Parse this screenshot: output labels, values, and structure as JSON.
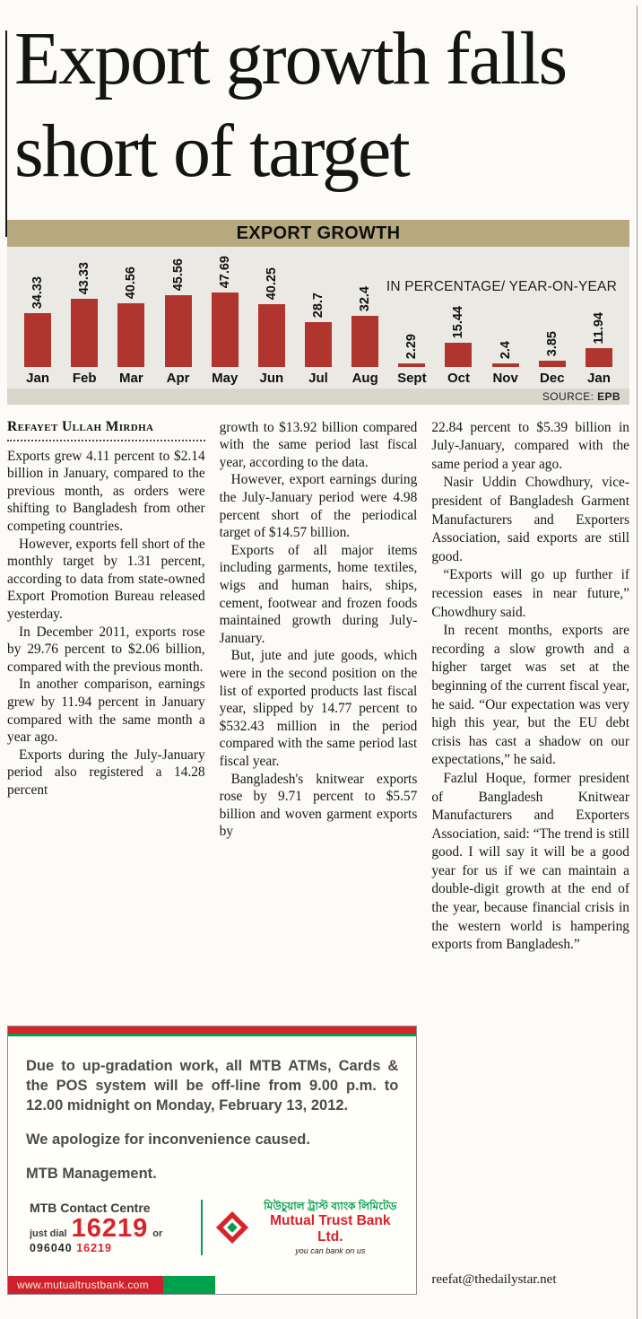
{
  "headline": "Export growth falls short of target",
  "chart": {
    "title": "EXPORT GROWTH",
    "subtitle": "IN PERCENTAGE/ YEAR-ON-YEAR",
    "source_label": "SOURCE:",
    "source_value": "EPB"
  },
  "chart_data": {
    "type": "bar",
    "title": "EXPORT GROWTH",
    "subtitle": "IN PERCENTAGE/ YEAR-ON-YEAR",
    "categories": [
      "Jan",
      "Feb",
      "Mar",
      "Apr",
      "May",
      "Jun",
      "Jul",
      "Aug",
      "Sept",
      "Oct",
      "Nov",
      "Dec",
      "Jan"
    ],
    "values": [
      34.33,
      43.33,
      40.56,
      45.56,
      47.69,
      40.25,
      28.7,
      32.4,
      2.29,
      15.44,
      2.4,
      3.85,
      11.94
    ],
    "unit": "percent year-on-year",
    "ylim": [
      0,
      50
    ],
    "bar_color": "#b0352e",
    "source": "EPB",
    "legend": false,
    "grid": false
  },
  "article": {
    "byline": "Refayet Ullah Mirdha",
    "email": "reefat@thedailystar.net",
    "columns": [
      [
        "Exports grew 4.11 percent to $2.14 billion in January, compared to the previous month, as orders were shifting to Bangladesh from other competing countries.",
        "However, exports fell short of the monthly target by 1.31 percent, according to data from state-owned Export Promotion Bureau released yesterday.",
        "In December 2011, exports rose by 29.76 percent to $2.06 billion, compared with the previous month.",
        "In another comparison, earnings grew by 11.94 percent in January compared with the same month a year ago.",
        "Exports during the July-January period also registered a 14.28 percent"
      ],
      [
        "growth to $13.92 billion compared with the same period last fiscal year, according to the data.",
        "However, export earnings during the July-January period were 4.98 percent short of the periodical target of $14.57 billion.",
        "Exports of all major items including garments, home textiles, wigs and human hairs, ships, cement, footwear and frozen foods maintained growth during July-January.",
        "But, jute and jute goods, which were in the second position on the list of exported products last fiscal year, slipped by 14.77 percent to $532.43 million in the period compared with the same period last fiscal year.",
        "Bangladesh's knitwear exports rose by 9.71 percent to $5.57 billion and woven garment exports by"
      ],
      [
        "22.84 percent to $5.39 billion in July-January, compared with the same period a year ago.",
        "Nasir Uddin Chowdhury, vice-president of Bangladesh Garment Manufacturers and Exporters Association, said exports are still good.",
        "“Exports will go up further if recession eases in near future,” Chowdhury said.",
        "In recent months, exports are recording a slow growth and a higher target was set at the beginning of the current fiscal year, he said. “Our expectation was very high this year, but the EU debt crisis has cast a shadow on our expectations,” he said.",
        "Fazlul Hoque, former president of Bangladesh Knitwear Manufacturers and Exporters Association, said: “The trend is still good. I will say it will be a good year for us if we can maintain a double-digit growth at the end of the year, because financial crisis in the western world is hampering exports from Bangladesh.”"
      ]
    ]
  },
  "ad": {
    "body": "Due to up-gradation work, all MTB ATMs, Cards & the POS system will be off-line from 9.00 p.m. to 12.00 midnight on Monday, February 13, 2012.",
    "apology": "We apologize for inconvenience caused.",
    "signature": "MTB Management.",
    "contact_title": "MTB Contact Centre",
    "just_dial": "just dial",
    "number_big": "16219",
    "or": "or",
    "number_prefix": "096040",
    "number_small": "16219",
    "website": "www.mutualtrustbank.com",
    "bank_name_bn": "মিউচুয়াল ট্রাস্ট ব্যাংক লিমিটেড",
    "bank_name_en": "Mutual Trust Bank Ltd.",
    "slogan": "you can bank on us",
    "brand_red": "#d8232b",
    "brand_green": "#00a04c"
  }
}
